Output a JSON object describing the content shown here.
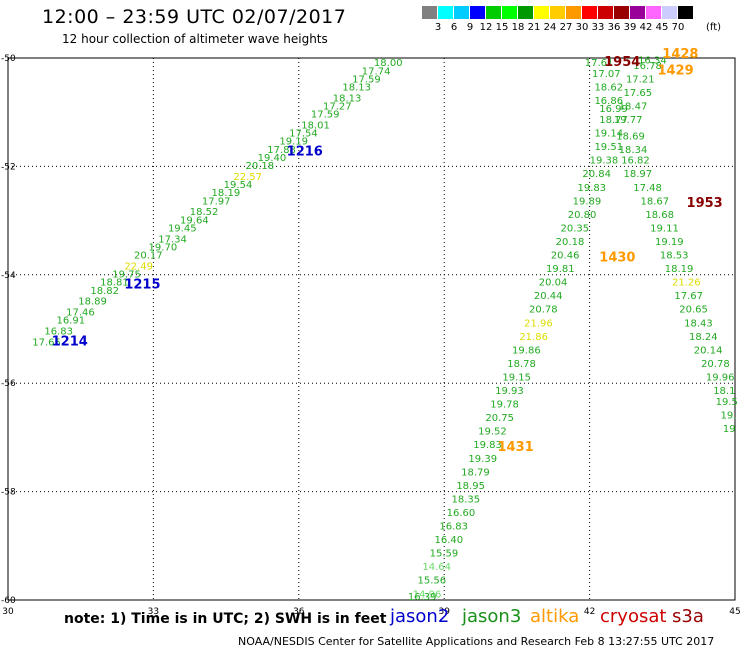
{
  "title": "12:00 – 23:59 UTC 02/07/2017",
  "subtitle": "12 hour collection of altimeter wave heights",
  "note": "note: 1) Time is in UTC; 2) SWH is in feet",
  "footer": "NOAA/NESDIS Center for Satellite Applications and Research    Feb  8 13:27:55 UTC 2017",
  "satellites": [
    {
      "name": "jason2",
      "color": "#0000cc"
    },
    {
      "name": "jason3",
      "color": "#1a8f1a"
    },
    {
      "name": "altika",
      "color": "#ff9900"
    },
    {
      "name": "cryosat",
      "color": "#cc0000"
    },
    {
      "name": "s3a",
      "color": "#990000"
    }
  ],
  "color_scale": {
    "units": "(ft)",
    "labels": [
      "3",
      "6",
      "9",
      "12",
      "15",
      "18",
      "21",
      "24",
      "27",
      "30",
      "33",
      "36",
      "39",
      "42",
      "45",
      "70"
    ],
    "colors": [
      "#808080",
      "#00ffff",
      "#00ccff",
      "#0000ff",
      "#00cc00",
      "#00ff00",
      "#009900",
      "#ffff00",
      "#ffcc00",
      "#ff9900",
      "#ff0000",
      "#cc0000",
      "#990000",
      "#990099",
      "#ff66ff",
      "#ccccff",
      "#000000"
    ]
  },
  "chart_data": {
    "type": "scatter",
    "title": "12:00 – 23:59 UTC 02/07/2017",
    "subtitle": "12 hour collection of altimeter wave heights",
    "xlabel": "",
    "ylabel": "",
    "xlim": [
      30,
      45
    ],
    "ylim": [
      -60,
      -50
    ],
    "x_ticks": [
      30,
      33,
      36,
      39,
      42,
      45
    ],
    "y_ticks": [
      -50,
      -52,
      -54,
      -56,
      -58,
      -60
    ],
    "grid": "dotted",
    "wave_points": [
      {
        "x": 30.5,
        "y": -55.3,
        "t": "17.65",
        "c": "#22aa22"
      },
      {
        "x": 30.75,
        "y": -55.1,
        "t": "16.83",
        "c": "#22aa22"
      },
      {
        "x": 31.0,
        "y": -54.9,
        "t": "16.91",
        "c": "#22aa22"
      },
      {
        "x": 31.2,
        "y": -54.75,
        "t": "17.46",
        "c": "#22aa22"
      },
      {
        "x": 31.45,
        "y": -54.55,
        "t": "18.89",
        "c": "#22aa22"
      },
      {
        "x": 31.7,
        "y": -54.35,
        "t": "18.82",
        "c": "#22aa22"
      },
      {
        "x": 31.9,
        "y": -54.2,
        "t": "18.81",
        "c": "#22aa22"
      },
      {
        "x": 32.15,
        "y": -54.05,
        "t": "19.75",
        "c": "#22aa22"
      },
      {
        "x": 32.4,
        "y": -53.9,
        "t": "22.49",
        "c": "#dddd00"
      },
      {
        "x": 32.6,
        "y": -53.7,
        "t": "20.17",
        "c": "#22aa22"
      },
      {
        "x": 32.9,
        "y": -53.55,
        "t": "19.70",
        "c": "#22aa22"
      },
      {
        "x": 33.1,
        "y": -53.4,
        "t": "17.34",
        "c": "#22aa22"
      },
      {
        "x": 33.3,
        "y": -53.2,
        "t": "19.45",
        "c": "#22aa22"
      },
      {
        "x": 33.55,
        "y": -53.05,
        "t": "19.64",
        "c": "#22aa22"
      },
      {
        "x": 33.75,
        "y": -52.9,
        "t": "18.52",
        "c": "#22aa22"
      },
      {
        "x": 34.0,
        "y": -52.7,
        "t": "17.97",
        "c": "#22aa22"
      },
      {
        "x": 34.2,
        "y": -52.55,
        "t": "18.19",
        "c": "#22aa22"
      },
      {
        "x": 34.45,
        "y": -52.4,
        "t": "19.54",
        "c": "#22aa22"
      },
      {
        "x": 34.65,
        "y": -52.25,
        "t": "22.57",
        "c": "#dddd00"
      },
      {
        "x": 34.9,
        "y": -52.05,
        "t": "20.18",
        "c": "#22aa22"
      },
      {
        "x": 35.15,
        "y": -51.9,
        "t": "19.40",
        "c": "#22aa22"
      },
      {
        "x": 35.35,
        "y": -51.75,
        "t": "17.88",
        "c": "#22aa22"
      },
      {
        "x": 35.6,
        "y": -51.6,
        "t": "19.19",
        "c": "#22aa22"
      },
      {
        "x": 35.8,
        "y": -51.45,
        "t": "17.54",
        "c": "#22aa22"
      },
      {
        "x": 36.05,
        "y": -51.3,
        "t": "18.01",
        "c": "#22aa22"
      },
      {
        "x": 36.25,
        "y": -51.1,
        "t": "17.59",
        "c": "#22aa22"
      },
      {
        "x": 36.5,
        "y": -50.95,
        "t": "17.27",
        "c": "#22aa22"
      },
      {
        "x": 36.7,
        "y": -50.8,
        "t": "18.13",
        "c": "#22aa22"
      },
      {
        "x": 36.9,
        "y": -50.6,
        "t": "18.13",
        "c": "#22aa22"
      },
      {
        "x": 37.1,
        "y": -50.45,
        "t": "17.59",
        "c": "#22aa22"
      },
      {
        "x": 37.3,
        "y": -50.3,
        "t": "17.74",
        "c": "#22aa22"
      },
      {
        "x": 37.55,
        "y": -50.15,
        "t": "18.00",
        "c": "#22aa22"
      },
      {
        "x": 41.9,
        "y": -50.15,
        "t": "17.61",
        "c": "#22aa22"
      },
      {
        "x": 42.05,
        "y": -50.35,
        "t": "17.07",
        "c": "#22aa22"
      },
      {
        "x": 42.1,
        "y": -50.6,
        "t": "18.62",
        "c": "#22aa22"
      },
      {
        "x": 42.1,
        "y": -50.85,
        "t": "16.86",
        "c": "#22aa22"
      },
      {
        "x": 42.2,
        "y": -51.0,
        "t": "16.99",
        "c": "#22aa22"
      },
      {
        "x": 42.2,
        "y": -51.2,
        "t": "18.77",
        "c": "#22aa22"
      },
      {
        "x": 42.1,
        "y": -51.45,
        "t": "19.14",
        "c": "#22aa22"
      },
      {
        "x": 42.1,
        "y": -51.7,
        "t": "19.51",
        "c": "#22aa22"
      },
      {
        "x": 42.0,
        "y": -51.95,
        "t": "19.38",
        "c": "#22aa22"
      },
      {
        "x": 41.85,
        "y": -52.2,
        "t": "20.84",
        "c": "#22aa22"
      },
      {
        "x": 41.75,
        "y": -52.45,
        "t": "19.83",
        "c": "#22aa22"
      },
      {
        "x": 41.65,
        "y": -52.7,
        "t": "19.89",
        "c": "#22aa22"
      },
      {
        "x": 41.55,
        "y": -52.95,
        "t": "20.80",
        "c": "#22aa22"
      },
      {
        "x": 41.4,
        "y": -53.2,
        "t": "20.35",
        "c": "#22aa22"
      },
      {
        "x": 41.3,
        "y": -53.45,
        "t": "20.18",
        "c": "#22aa22"
      },
      {
        "x": 41.2,
        "y": -53.7,
        "t": "20.46",
        "c": "#22aa22"
      },
      {
        "x": 41.1,
        "y": -53.95,
        "t": "19.81",
        "c": "#22aa22"
      },
      {
        "x": 40.95,
        "y": -54.2,
        "t": "20.04",
        "c": "#22aa22"
      },
      {
        "x": 40.85,
        "y": -54.45,
        "t": "20.44",
        "c": "#22aa22"
      },
      {
        "x": 40.75,
        "y": -54.7,
        "t": "20.78",
        "c": "#22aa22"
      },
      {
        "x": 40.65,
        "y": -54.95,
        "t": "21.96",
        "c": "#dddd00"
      },
      {
        "x": 40.55,
        "y": -55.2,
        "t": "21.86",
        "c": "#dddd00"
      },
      {
        "x": 40.4,
        "y": -55.45,
        "t": "19.86",
        "c": "#22aa22"
      },
      {
        "x": 40.3,
        "y": -55.7,
        "t": "18.78",
        "c": "#22aa22"
      },
      {
        "x": 40.2,
        "y": -55.95,
        "t": "19.15",
        "c": "#22aa22"
      },
      {
        "x": 40.05,
        "y": -56.2,
        "t": "19.93",
        "c": "#22aa22"
      },
      {
        "x": 39.95,
        "y": -56.45,
        "t": "19.78",
        "c": "#22aa22"
      },
      {
        "x": 39.85,
        "y": -56.7,
        "t": "20.75",
        "c": "#22aa22"
      },
      {
        "x": 39.7,
        "y": -56.95,
        "t": "19.52",
        "c": "#22aa22"
      },
      {
        "x": 39.6,
        "y": -57.2,
        "t": "19.83",
        "c": "#22aa22"
      },
      {
        "x": 39.5,
        "y": -57.45,
        "t": "19.39",
        "c": "#22aa22"
      },
      {
        "x": 39.35,
        "y": -57.7,
        "t": "18.79",
        "c": "#22aa22"
      },
      {
        "x": 39.25,
        "y": -57.95,
        "t": "18.95",
        "c": "#22aa22"
      },
      {
        "x": 39.15,
        "y": -58.2,
        "t": "18.35",
        "c": "#22aa22"
      },
      {
        "x": 39.05,
        "y": -58.45,
        "t": "16.60",
        "c": "#22aa22"
      },
      {
        "x": 38.9,
        "y": -58.7,
        "t": "16.83",
        "c": "#22aa22"
      },
      {
        "x": 38.8,
        "y": -58.95,
        "t": "16.40",
        "c": "#22aa22"
      },
      {
        "x": 38.7,
        "y": -59.2,
        "t": "15.59",
        "c": "#22aa22"
      },
      {
        "x": 38.55,
        "y": -59.45,
        "t": "14.64",
        "c": "#66dd66"
      },
      {
        "x": 38.45,
        "y": -59.7,
        "t": "15.56",
        "c": "#22aa22"
      },
      {
        "x": 38.35,
        "y": -59.95,
        "t": "14.96",
        "c": "#66dd66"
      },
      {
        "x": 38.25,
        "y": -60.0,
        "t": "16.39",
        "c": "#22aa22"
      },
      {
        "x": 43.0,
        "y": -50.1,
        "t": "16.34",
        "c": "#22aa22"
      },
      {
        "x": 42.9,
        "y": -50.2,
        "t": "16.78",
        "c": "#22aa22"
      },
      {
        "x": 42.75,
        "y": -50.45,
        "t": "17.21",
        "c": "#22aa22"
      },
      {
        "x": 42.7,
        "y": -50.7,
        "t": "17.65",
        "c": "#22aa22"
      },
      {
        "x": 42.6,
        "y": -50.95,
        "t": "18.47",
        "c": "#22aa22"
      },
      {
        "x": 42.5,
        "y": -51.2,
        "t": "19.77",
        "c": "#22aa22"
      },
      {
        "x": 42.55,
        "y": -51.5,
        "t": "18.69",
        "c": "#22aa22"
      },
      {
        "x": 42.6,
        "y": -51.75,
        "t": "18.34",
        "c": "#22aa22"
      },
      {
        "x": 42.65,
        "y": -51.95,
        "t": "16.82",
        "c": "#22aa22"
      },
      {
        "x": 42.7,
        "y": -52.2,
        "t": "18.97",
        "c": "#22aa22"
      },
      {
        "x": 42.9,
        "y": -52.45,
        "t": "17.48",
        "c": "#22aa22"
      },
      {
        "x": 43.05,
        "y": -52.7,
        "t": "18.67",
        "c": "#22aa22"
      },
      {
        "x": 43.15,
        "y": -52.95,
        "t": "18.68",
        "c": "#22aa22"
      },
      {
        "x": 43.25,
        "y": -53.2,
        "t": "19.11",
        "c": "#22aa22"
      },
      {
        "x": 43.35,
        "y": -53.45,
        "t": "19.19",
        "c": "#22aa22"
      },
      {
        "x": 43.45,
        "y": -53.7,
        "t": "18.53",
        "c": "#22aa22"
      },
      {
        "x": 43.55,
        "y": -53.95,
        "t": "18.19",
        "c": "#22aa22"
      },
      {
        "x": 43.7,
        "y": -54.2,
        "t": "21.26",
        "c": "#dddd00"
      },
      {
        "x": 43.75,
        "y": -54.45,
        "t": "17.67",
        "c": "#22aa22"
      },
      {
        "x": 43.85,
        "y": -54.7,
        "t": "20.65",
        "c": "#22aa22"
      },
      {
        "x": 43.95,
        "y": -54.95,
        "t": "18.43",
        "c": "#22aa22"
      },
      {
        "x": 44.05,
        "y": -55.2,
        "t": "18.24",
        "c": "#22aa22"
      },
      {
        "x": 44.15,
        "y": -55.45,
        "t": "20.14",
        "c": "#22aa22"
      },
      {
        "x": 44.3,
        "y": -55.7,
        "t": "20.78",
        "c": "#22aa22"
      },
      {
        "x": 44.4,
        "y": -55.95,
        "t": "19.96",
        "c": "#22aa22"
      },
      {
        "x": 44.55,
        "y": -56.2,
        "t": "18.1",
        "c": "#22aa22"
      },
      {
        "x": 44.6,
        "y": -56.4,
        "t": "19.5",
        "c": "#22aa22"
      },
      {
        "x": 44.7,
        "y": -56.65,
        "t": "19.",
        "c": "#22aa22"
      },
      {
        "x": 44.75,
        "y": -56.9,
        "t": "19",
        "c": "#22aa22"
      }
    ],
    "pass_labels": [
      {
        "x": 30.9,
        "y": -55.3,
        "t": "1214",
        "c": "#0000cc"
      },
      {
        "x": 32.4,
        "y": -54.25,
        "t": "1215",
        "c": "#0000cc"
      },
      {
        "x": 35.75,
        "y": -51.8,
        "t": "1216",
        "c": "#0000cc"
      },
      {
        "x": 42.3,
        "y": -50.15,
        "t": "1954",
        "c": "#880000"
      },
      {
        "x": 43.5,
        "y": -50.0,
        "t": "1428",
        "c": "#ff9900"
      },
      {
        "x": 43.4,
        "y": -50.3,
        "t": "1429",
        "c": "#ff9900"
      },
      {
        "x": 44.0,
        "y": -52.75,
        "t": "1953",
        "c": "#880000"
      },
      {
        "x": 42.2,
        "y": -53.75,
        "t": "1430",
        "c": "#ff9900"
      },
      {
        "x": 40.1,
        "y": -57.25,
        "t": "1431",
        "c": "#ff9900"
      }
    ]
  }
}
